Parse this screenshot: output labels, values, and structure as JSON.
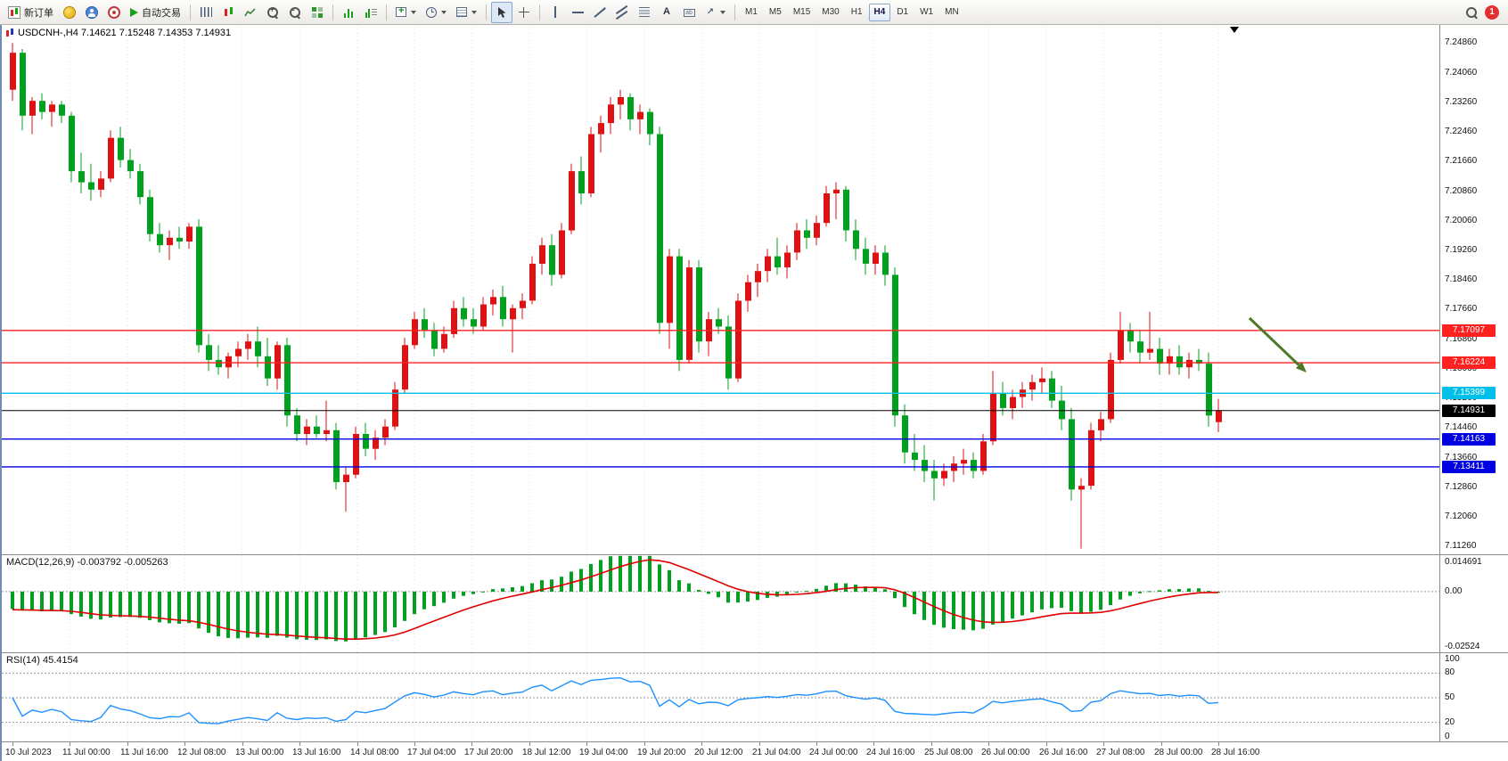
{
  "toolbar": {
    "new_order": "新订单",
    "autotrading": "自动交易",
    "timeframes": [
      "M1",
      "M5",
      "M15",
      "M30",
      "H1",
      "H4",
      "D1",
      "W1",
      "MN"
    ],
    "active_timeframe": "H4",
    "notification_count": "1"
  },
  "chart": {
    "symbol_line": "USDCNH-,H4  7.14621 7.15248 7.14353 7.14931",
    "colors": {
      "bull": "#DE1212",
      "bear": "#00A11E",
      "arrow": "#4E7A28",
      "grid": "#e4e4e4"
    }
  },
  "chart_data": [
    {
      "type": "candlestick",
      "title": "USDCNH-,H4",
      "symbol": "USDCNH-",
      "timeframe": "H4",
      "ylim": [
        7.1105,
        7.2535
      ],
      "y_labels": [
        "7.24860",
        "7.24060",
        "7.23260",
        "7.22460",
        "7.21660",
        "7.20860",
        "7.20060",
        "7.19260",
        "7.18460",
        "7.17660",
        "7.16860",
        "7.16060",
        "7.15260",
        "7.14460",
        "7.13660",
        "7.12860",
        "7.12060",
        "7.11260"
      ],
      "x_labels": [
        "10 Jul 2023",
        "11 Jul 00:00",
        "11 Jul 16:00",
        "12 Jul 08:00",
        "13 Jul 00:00",
        "13 Jul 16:00",
        "14 Jul 08:00",
        "17 Jul 04:00",
        "17 Jul 20:00",
        "18 Jul 12:00",
        "19 Jul 04:00",
        "19 Jul 20:00",
        "20 Jul 12:00",
        "21 Jul 04:00",
        "24 Jul 00:00",
        "24 Jul 16:00",
        "25 Jul 08:00",
        "26 Jul 00:00",
        "26 Jul 16:00",
        "27 Jul 08:00",
        "28 Jul 00:00",
        "28 Jul 16:00"
      ],
      "levels": [
        {
          "label": "7.17097",
          "value": 7.17097,
          "color": "#FF2020",
          "role": "resistance"
        },
        {
          "label": "7.16224",
          "value": 7.16224,
          "color": "#FF2020",
          "role": "resistance"
        },
        {
          "label": "7.15399",
          "value": 7.15399,
          "color": "#00BFE8",
          "role": "level"
        },
        {
          "label": "7.14931",
          "value": 7.14931,
          "color": "#000000",
          "role": "current-price"
        },
        {
          "label": "7.14163",
          "value": 7.14163,
          "color": "#0000E0",
          "role": "support"
        },
        {
          "label": "7.13411",
          "value": 7.13411,
          "color": "#0000E0",
          "role": "support"
        }
      ],
      "current_price": 7.14931,
      "annotations": [
        {
          "type": "arrow",
          "from": [
            1400,
            329
          ],
          "to": [
            1464,
            390
          ],
          "color": "#4E7A28"
        }
      ],
      "ohlc": [
        [
          7.236,
          7.2486,
          7.233,
          7.246
        ],
        [
          7.246,
          7.247,
          7.225,
          7.229
        ],
        [
          7.229,
          7.234,
          7.224,
          7.233
        ],
        [
          7.233,
          7.235,
          7.228,
          7.23
        ],
        [
          7.23,
          7.233,
          7.226,
          7.232
        ],
        [
          7.232,
          7.233,
          7.227,
          7.229
        ],
        [
          7.229,
          7.23,
          7.211,
          7.214
        ],
        [
          7.214,
          7.219,
          7.208,
          7.211
        ],
        [
          7.211,
          7.216,
          7.206,
          7.209
        ],
        [
          7.209,
          7.214,
          7.207,
          7.212
        ],
        [
          7.212,
          7.225,
          7.211,
          7.223
        ],
        [
          7.223,
          7.226,
          7.215,
          7.217
        ],
        [
          7.217,
          7.22,
          7.212,
          7.214
        ],
        [
          7.214,
          7.216,
          7.205,
          7.207
        ],
        [
          7.207,
          7.209,
          7.195,
          7.197
        ],
        [
          7.197,
          7.2,
          7.192,
          7.194
        ],
        [
          7.194,
          7.198,
          7.19,
          7.196
        ],
        [
          7.196,
          7.199,
          7.193,
          7.195
        ],
        [
          7.195,
          7.2,
          7.193,
          7.199
        ],
        [
          7.199,
          7.201,
          7.165,
          7.167
        ],
        [
          7.167,
          7.17,
          7.16,
          7.163
        ],
        [
          7.163,
          7.167,
          7.159,
          7.161
        ],
        [
          7.161,
          7.165,
          7.158,
          7.164
        ],
        [
          7.164,
          7.168,
          7.161,
          7.166
        ],
        [
          7.166,
          7.17,
          7.163,
          7.168
        ],
        [
          7.168,
          7.172,
          7.161,
          7.164
        ],
        [
          7.164,
          7.169,
          7.156,
          7.158
        ],
        [
          7.158,
          7.168,
          7.155,
          7.167
        ],
        [
          7.167,
          7.169,
          7.145,
          7.148
        ],
        [
          7.148,
          7.15,
          7.141,
          7.143
        ],
        [
          7.143,
          7.147,
          7.14,
          7.145
        ],
        [
          7.145,
          7.148,
          7.142,
          7.143
        ],
        [
          7.143,
          7.152,
          7.141,
          7.144
        ],
        [
          7.144,
          7.146,
          7.128,
          7.13
        ],
        [
          7.13,
          7.134,
          7.122,
          7.132
        ],
        [
          7.132,
          7.145,
          7.131,
          7.143
        ],
        [
          7.143,
          7.146,
          7.137,
          7.139
        ],
        [
          7.139,
          7.144,
          7.136,
          7.142
        ],
        [
          7.142,
          7.147,
          7.14,
          7.145
        ],
        [
          7.145,
          7.157,
          7.144,
          7.155
        ],
        [
          7.155,
          7.169,
          7.154,
          7.167
        ],
        [
          7.167,
          7.176,
          7.166,
          7.174
        ],
        [
          7.174,
          7.177,
          7.169,
          7.171
        ],
        [
          7.171,
          7.173,
          7.164,
          7.166
        ],
        [
          7.166,
          7.172,
          7.165,
          7.17
        ],
        [
          7.17,
          7.179,
          7.169,
          7.177
        ],
        [
          7.177,
          7.18,
          7.172,
          7.174
        ],
        [
          7.174,
          7.177,
          7.17,
          7.172
        ],
        [
          7.172,
          7.18,
          7.171,
          7.178
        ],
        [
          7.178,
          7.182,
          7.175,
          7.18
        ],
        [
          7.18,
          7.183,
          7.172,
          7.174
        ],
        [
          7.174,
          7.178,
          7.165,
          7.177
        ],
        [
          7.177,
          7.181,
          7.174,
          7.179
        ],
        [
          7.179,
          7.191,
          7.178,
          7.189
        ],
        [
          7.189,
          7.196,
          7.186,
          7.194
        ],
        [
          7.194,
          7.197,
          7.183,
          7.186
        ],
        [
          7.186,
          7.2,
          7.185,
          7.198
        ],
        [
          7.198,
          7.216,
          7.197,
          7.214
        ],
        [
          7.214,
          7.218,
          7.205,
          7.208
        ],
        [
          7.208,
          7.226,
          7.207,
          7.224
        ],
        [
          7.224,
          7.229,
          7.219,
          7.227
        ],
        [
          7.227,
          7.234,
          7.224,
          7.232
        ],
        [
          7.232,
          7.236,
          7.228,
          7.234
        ],
        [
          7.234,
          7.235,
          7.225,
          7.228
        ],
        [
          7.228,
          7.232,
          7.224,
          7.23
        ],
        [
          7.23,
          7.231,
          7.221,
          7.224
        ],
        [
          7.224,
          7.226,
          7.17,
          7.173
        ],
        [
          7.173,
          7.193,
          7.166,
          7.191
        ],
        [
          7.191,
          7.193,
          7.16,
          7.163
        ],
        [
          7.163,
          7.19,
          7.162,
          7.188
        ],
        [
          7.188,
          7.19,
          7.165,
          7.168
        ],
        [
          7.168,
          7.176,
          7.164,
          7.174
        ],
        [
          7.174,
          7.177,
          7.17,
          7.172
        ],
        [
          7.172,
          7.175,
          7.155,
          7.158
        ],
        [
          7.158,
          7.181,
          7.157,
          7.179
        ],
        [
          7.179,
          7.186,
          7.176,
          7.184
        ],
        [
          7.184,
          7.189,
          7.18,
          7.187
        ],
        [
          7.187,
          7.193,
          7.184,
          7.191
        ],
        [
          7.191,
          7.196,
          7.186,
          7.188
        ],
        [
          7.188,
          7.194,
          7.185,
          7.192
        ],
        [
          7.192,
          7.2,
          7.19,
          7.198
        ],
        [
          7.198,
          7.201,
          7.193,
          7.196
        ],
        [
          7.196,
          7.202,
          7.194,
          7.2
        ],
        [
          7.2,
          7.21,
          7.199,
          7.208
        ],
        [
          7.208,
          7.211,
          7.201,
          7.209
        ],
        [
          7.209,
          7.21,
          7.195,
          7.198
        ],
        [
          7.198,
          7.201,
          7.19,
          7.193
        ],
        [
          7.193,
          7.196,
          7.186,
          7.189
        ],
        [
          7.189,
          7.194,
          7.186,
          7.192
        ],
        [
          7.192,
          7.194,
          7.183,
          7.186
        ],
        [
          7.186,
          7.188,
          7.145,
          7.148
        ],
        [
          7.148,
          7.151,
          7.135,
          7.138
        ],
        [
          7.138,
          7.143,
          7.133,
          7.136
        ],
        [
          7.136,
          7.14,
          7.13,
          7.133
        ],
        [
          7.133,
          7.136,
          7.125,
          7.131
        ],
        [
          7.131,
          7.135,
          7.129,
          7.133
        ],
        [
          7.133,
          7.137,
          7.13,
          7.135
        ],
        [
          7.135,
          7.139,
          7.132,
          7.136
        ],
        [
          7.136,
          7.138,
          7.131,
          7.133
        ],
        [
          7.133,
          7.143,
          7.132,
          7.141
        ],
        [
          7.141,
          7.16,
          7.14,
          7.154
        ],
        [
          7.154,
          7.157,
          7.148,
          7.15
        ],
        [
          7.15,
          7.155,
          7.147,
          7.153
        ],
        [
          7.153,
          7.157,
          7.15,
          7.155
        ],
        [
          7.155,
          7.159,
          7.152,
          7.157
        ],
        [
          7.157,
          7.161,
          7.154,
          7.158
        ],
        [
          7.158,
          7.16,
          7.15,
          7.152
        ],
        [
          7.152,
          7.156,
          7.144,
          7.147
        ],
        [
          7.147,
          7.15,
          7.125,
          7.128
        ],
        [
          7.128,
          7.131,
          7.112,
          7.129
        ],
        [
          7.129,
          7.146,
          7.128,
          7.144
        ],
        [
          7.144,
          7.149,
          7.141,
          7.147
        ],
        [
          7.147,
          7.165,
          7.146,
          7.163
        ],
        [
          7.163,
          7.176,
          7.162,
          7.171
        ],
        [
          7.171,
          7.173,
          7.165,
          7.168
        ],
        [
          7.168,
          7.171,
          7.162,
          7.165
        ],
        [
          7.165,
          7.176,
          7.163,
          7.166
        ],
        [
          7.166,
          7.169,
          7.159,
          7.162
        ],
        [
          7.162,
          7.166,
          7.159,
          7.164
        ],
        [
          7.164,
          7.167,
          7.159,
          7.161
        ],
        [
          7.161,
          7.165,
          7.158,
          7.163
        ],
        [
          7.163,
          7.166,
          7.16,
          7.162
        ],
        [
          7.162,
          7.165,
          7.145,
          7.148
        ],
        [
          7.1462,
          7.1525,
          7.1435,
          7.1493
        ]
      ]
    },
    {
      "type": "bar",
      "name": "MACD(12,26,9)",
      "title": "MACD(12,26,9) -0.003792 -0.005263",
      "current_values": [
        -0.003792,
        -0.005263
      ],
      "ylim": [
        -0.0253,
        0.015
      ],
      "y_labels": [
        "0.014691",
        "0.00",
        "-0.02524"
      ],
      "histogram_color": "#00A11E",
      "signal_color": "#E00000"
    },
    {
      "type": "line",
      "name": "RSI(14)",
      "title": "RSI(14) 45.4154",
      "current_value": 45.4154,
      "ylim": [
        0,
        100
      ],
      "levels": [
        80,
        50,
        20
      ],
      "y_labels": [
        "100",
        "80",
        "50",
        "20",
        "0"
      ],
      "line_color": "#1E90FF"
    }
  ]
}
